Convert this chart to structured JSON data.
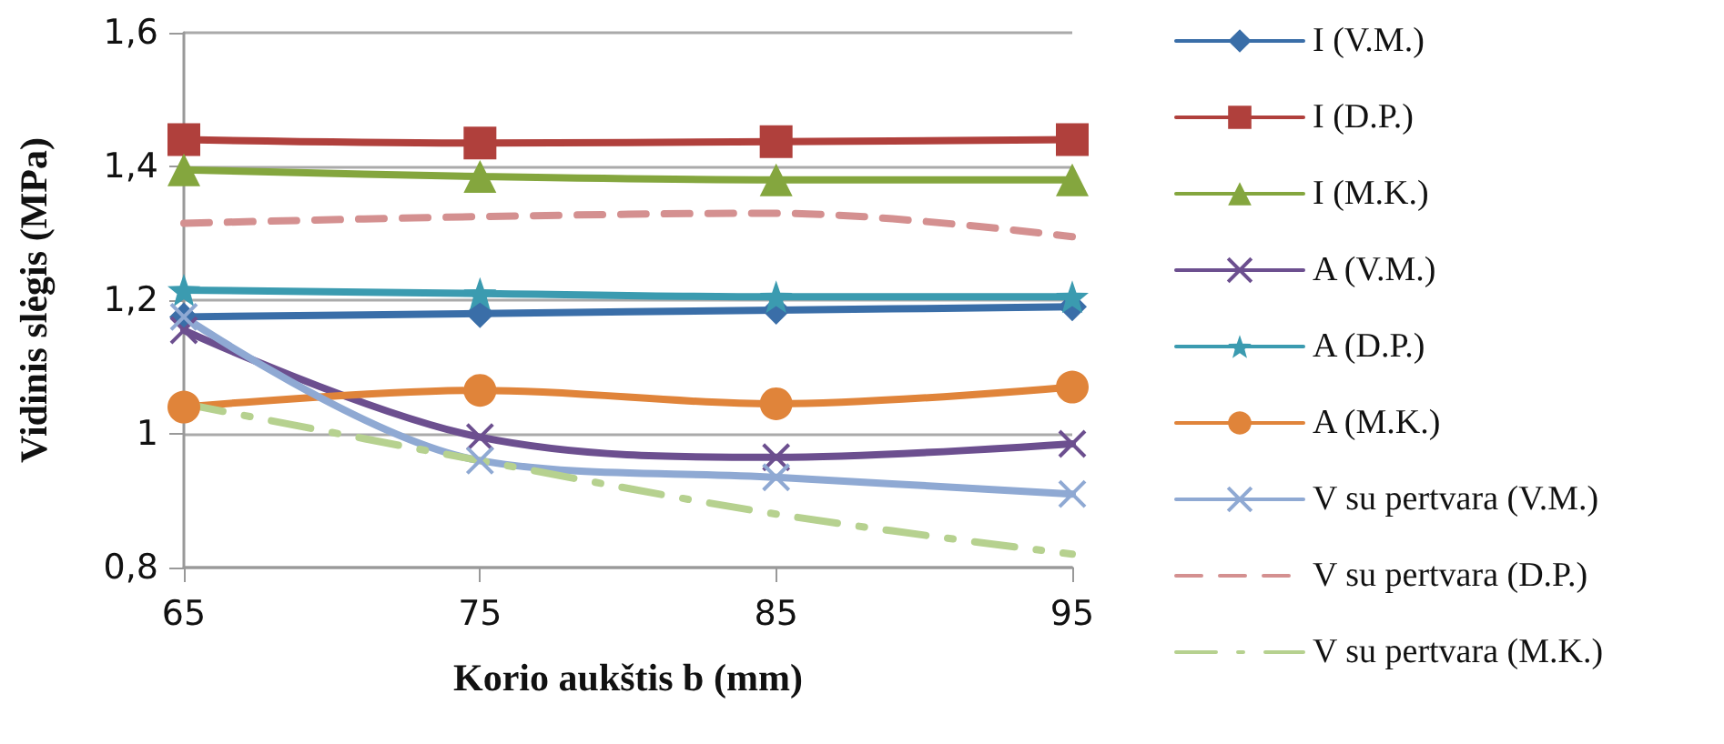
{
  "chart_data": {
    "type": "line",
    "xlabel": "Korio aukštis b (mm)",
    "ylabel": "Vidinis slėgis (MPa)",
    "x": [
      65,
      75,
      85,
      95
    ],
    "xlim": [
      65,
      95
    ],
    "xticks": [
      65,
      75,
      85,
      95
    ],
    "ylim": [
      0.8,
      1.6
    ],
    "yticks": [
      {
        "value": 0.8,
        "label": "0,8"
      },
      1,
      {
        "value": 1.2,
        "label": "1,2"
      },
      {
        "value": 1.4,
        "label": "1,4"
      },
      {
        "value": 1.6,
        "label": "1,6"
      }
    ],
    "grid": "y",
    "legend": "right",
    "series": [
      {
        "name": "I (V.M.)",
        "color": "#3a6ea8",
        "marker": "diamond",
        "line_style": "solid",
        "values": [
          1.175,
          1.18,
          1.185,
          1.19
        ]
      },
      {
        "name": "I (D.P.)",
        "color": "#b0403c",
        "marker": "square",
        "line_style": "solid",
        "values": [
          1.44,
          1.435,
          1.437,
          1.44
        ]
      },
      {
        "name": "I (M.K.)",
        "color": "#84a63e",
        "marker": "triangle",
        "line_style": "solid",
        "values": [
          1.395,
          1.385,
          1.38,
          1.38
        ]
      },
      {
        "name": "A (V.M.)",
        "color": "#6c4f8f",
        "marker": "cross",
        "line_style": "solid",
        "values": [
          1.155,
          0.995,
          0.965,
          0.985
        ]
      },
      {
        "name": "A (D.P.)",
        "color": "#3b9bb0",
        "marker": "star",
        "line_style": "solid",
        "values": [
          1.215,
          1.21,
          1.205,
          1.205
        ]
      },
      {
        "name": "A (M.K.)",
        "color": "#e0843a",
        "marker": "circle",
        "line_style": "solid",
        "values": [
          1.04,
          1.065,
          1.045,
          1.07
        ]
      },
      {
        "name": "V su pertvara (V.M.)",
        "color": "#8fa9d3",
        "marker": "cross",
        "line_style": "solid",
        "values": [
          1.175,
          0.96,
          0.935,
          0.91
        ]
      },
      {
        "name": "V su pertvara (D.P.)",
        "color": "#d49090",
        "marker": "none",
        "line_style": "dashed",
        "values": [
          1.315,
          1.325,
          1.33,
          1.295
        ]
      },
      {
        "name": "V su pertvara (M.K.)",
        "color": "#b6d18f",
        "marker": "none",
        "line_style": "dashdot",
        "values": [
          1.045,
          0.96,
          0.88,
          0.82
        ]
      }
    ]
  }
}
